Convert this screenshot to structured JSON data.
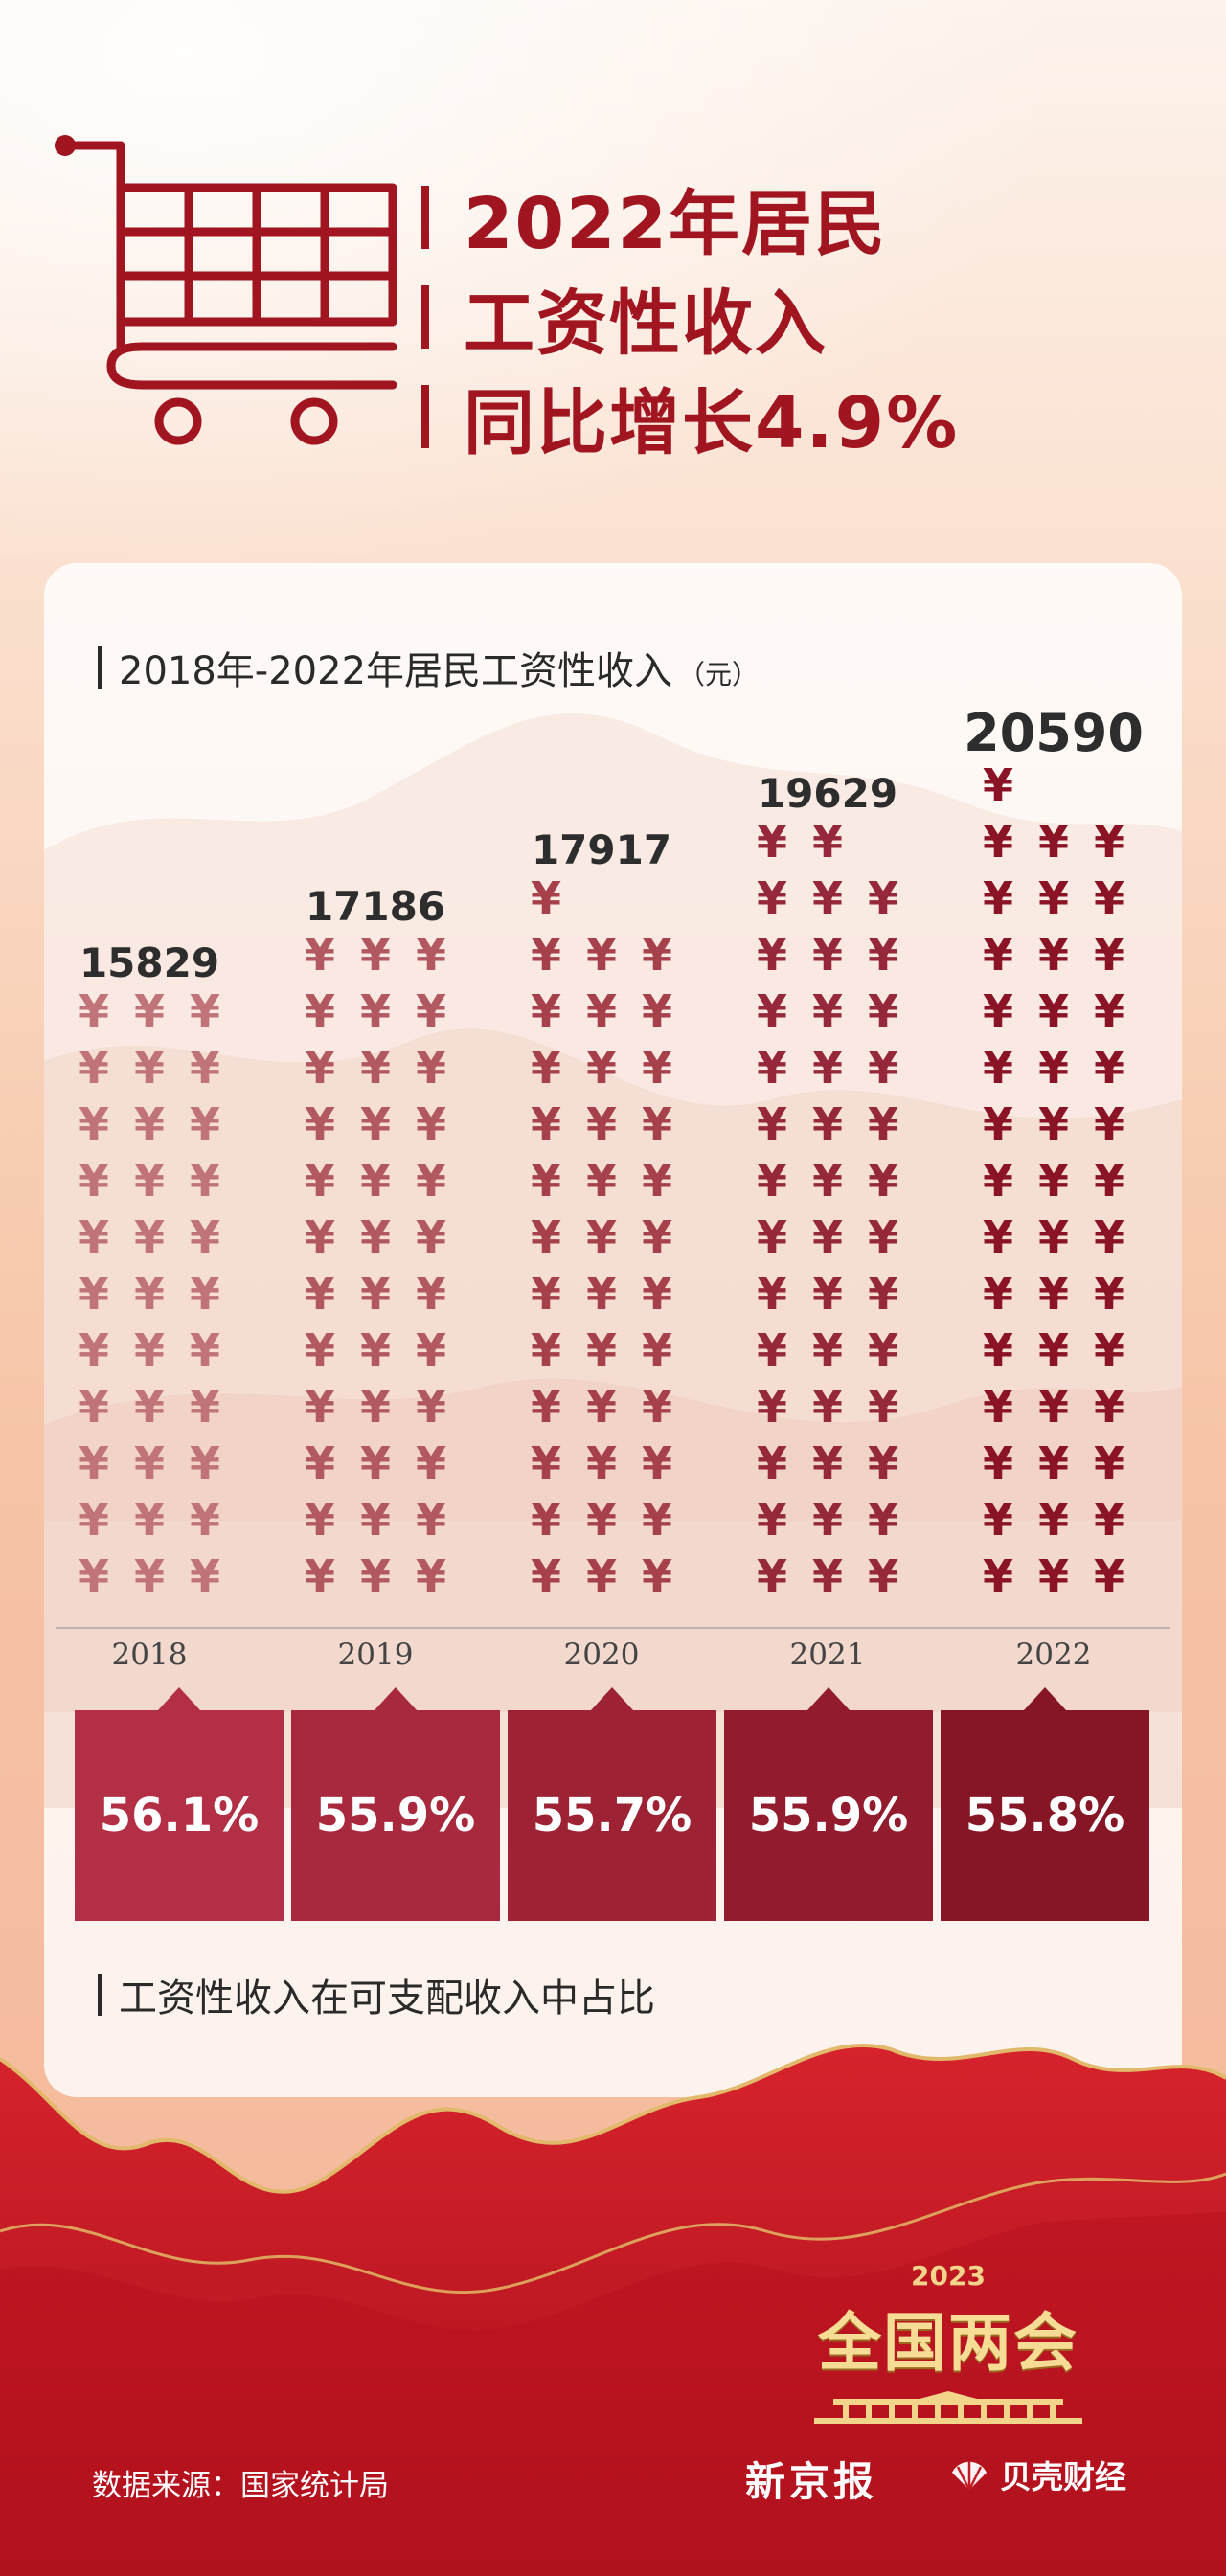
{
  "header": {
    "title_lines": [
      "2022年居民",
      "工资性收入",
      "同比增长4.9%"
    ]
  },
  "chart_data": {
    "type": "bar",
    "title": "2018年-2022年居民工资性收入",
    "unit": "（元）",
    "categories": [
      "2018",
      "2019",
      "2020",
      "2021",
      "2022"
    ],
    "values": [
      15829,
      17186,
      17917,
      19629,
      20590
    ],
    "series": [
      {
        "values": [
          15829,
          17186,
          17917,
          19629,
          20590
        ]
      }
    ],
    "colors": [
      "#c07378",
      "#b25861",
      "#a6404b",
      "#95283a",
      "#8a1326"
    ]
  },
  "share": {
    "title": "工资性收入在可支配收入中占比",
    "values": [
      "56.1%",
      "55.9%",
      "55.7%",
      "55.9%",
      "55.8%"
    ],
    "colors": [
      "#b32f46",
      "#a8283d",
      "#9d2234",
      "#921c2d",
      "#861625"
    ]
  },
  "footer": {
    "source": "数据来源：国家统计局",
    "emblem_year": "2023",
    "emblem_name": "全国两会",
    "logo_newspaper": "新京报",
    "logo_finance": "贝壳财经"
  }
}
